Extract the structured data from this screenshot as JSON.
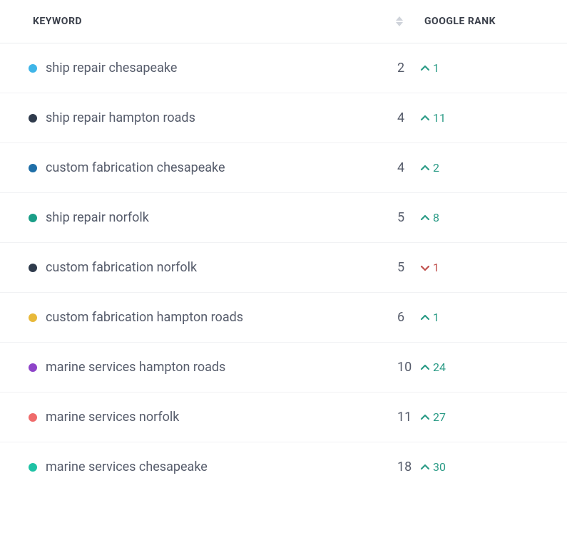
{
  "columns": {
    "keyword_header": "KEYWORD",
    "rank_header": "GOOGLE RANK"
  },
  "colors": {
    "up": "#2b9b86",
    "down": "#c0504d",
    "sort_inactive": "#cfd3da",
    "border": "#eaecef",
    "text": "#565c6b",
    "header_text": "#3a3f4a"
  },
  "rows": [
    {
      "dot_color": "#3fb5e8",
      "keyword": "ship repair chesapeake",
      "rank": "2",
      "direction": "up",
      "delta": "1"
    },
    {
      "dot_color": "#2f3b4c",
      "keyword": "ship repair hampton roads",
      "rank": "4",
      "direction": "up",
      "delta": "11"
    },
    {
      "dot_color": "#1f6fa8",
      "keyword": "custom fabrication chesapeake",
      "rank": "4",
      "direction": "up",
      "delta": "2"
    },
    {
      "dot_color": "#1a9e87",
      "keyword": "ship repair norfolk",
      "rank": "5",
      "direction": "up",
      "delta": "8"
    },
    {
      "dot_color": "#2f3b4c",
      "keyword": "custom fabrication norfolk",
      "rank": "5",
      "direction": "down",
      "delta": "1"
    },
    {
      "dot_color": "#e8b93a",
      "keyword": "custom fabrication hampton roads",
      "rank": "6",
      "direction": "up",
      "delta": "1"
    },
    {
      "dot_color": "#8e44c9",
      "keyword": "marine services hampton roads",
      "rank": "10",
      "direction": "up",
      "delta": "24"
    },
    {
      "dot_color": "#ef6b6b",
      "keyword": "marine services norfolk",
      "rank": "11",
      "direction": "up",
      "delta": "27"
    },
    {
      "dot_color": "#1fc2a5",
      "keyword": "marine services chesapeake",
      "rank": "18",
      "direction": "up",
      "delta": "30"
    }
  ]
}
